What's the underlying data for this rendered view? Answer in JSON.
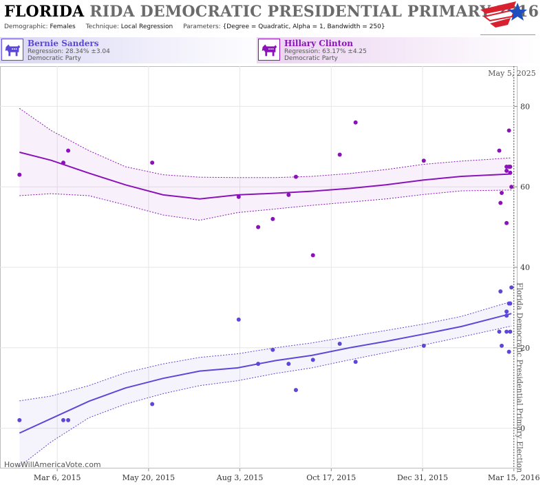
{
  "header": {
    "title_prefix": "FLORIDA",
    "title_rest": "RIDA DEMOCRATIC PRESIDENTIAL PRIMARY 2016",
    "params": [
      {
        "label": "Demographic:",
        "value": "Females"
      },
      {
        "label": "Technique:",
        "value": "Local Regression"
      },
      {
        "label": "Parameters:",
        "value": "{Degree = Quadratic, Alpha = 1, Bandwidth = 250}"
      }
    ]
  },
  "candidates": [
    {
      "name": "Bernie Sanders",
      "regression": "Regression: 28.34% ±3.04",
      "party": "Democratic Party",
      "color": "#5b48d6"
    },
    {
      "name": "Hillary Clinton",
      "regression": "Regression: 63.17% ±4.25",
      "party": "Democratic Party",
      "color": "#8a12b8"
    }
  ],
  "credit": "HowWillAmericaVote.com",
  "chart_data": {
    "type": "scatter",
    "x_type": "date",
    "xlim": [
      "2015-01-18",
      "2016-03-18"
    ],
    "ylim": [
      -10,
      90
    ],
    "x_ticks": [
      {
        "date": "2015-03-06",
        "label": "Mar 6, 2015"
      },
      {
        "date": "2015-05-20",
        "label": "May 20, 2015"
      },
      {
        "date": "2015-08-03",
        "label": "Aug 3, 2015"
      },
      {
        "date": "2015-10-17",
        "label": "Oct 17, 2015"
      },
      {
        "date": "2015-12-31",
        "label": "Dec 31, 2015"
      },
      {
        "date": "2016-03-15",
        "label": "Mar 15, 2016"
      }
    ],
    "y_ticks": [
      0,
      20,
      40,
      60,
      80
    ],
    "annotation": {
      "date": "2016-03-15",
      "text": "Florida Democratic Presidential Primary Election",
      "top_label": "May 5, 2025"
    },
    "series": [
      {
        "name": "Hillary Clinton",
        "color": "#8a12b8",
        "points": [
          [
            "2015-02-03",
            63
          ],
          [
            "2015-03-11",
            66
          ],
          [
            "2015-03-15",
            69
          ],
          [
            "2015-05-23",
            66
          ],
          [
            "2015-08-02",
            57.5
          ],
          [
            "2015-08-18",
            50
          ],
          [
            "2015-08-30",
            52
          ],
          [
            "2015-09-12",
            58
          ],
          [
            "2015-09-18",
            62.5
          ],
          [
            "2015-10-02",
            43
          ],
          [
            "2015-10-24",
            68
          ],
          [
            "2015-11-06",
            76
          ],
          [
            "2016-01-01",
            66.5
          ],
          [
            "2016-03-03",
            69
          ],
          [
            "2016-03-04",
            56
          ],
          [
            "2016-03-05",
            58.5
          ],
          [
            "2016-03-09",
            51
          ],
          [
            "2016-03-09",
            65
          ],
          [
            "2016-03-09",
            64
          ],
          [
            "2016-03-11",
            74
          ],
          [
            "2016-03-11",
            65
          ],
          [
            "2016-03-12",
            65
          ],
          [
            "2016-03-12",
            63.5
          ],
          [
            "2016-03-13",
            60
          ]
        ],
        "fit": [
          [
            "2015-02-03",
            68.6
          ],
          [
            "2015-03-01",
            66.6
          ],
          [
            "2015-04-01",
            63.4
          ],
          [
            "2015-05-01",
            60.5
          ],
          [
            "2015-06-01",
            58.0
          ],
          [
            "2015-07-01",
            57.0
          ],
          [
            "2015-08-01",
            58.0
          ],
          [
            "2015-09-01",
            58.4
          ],
          [
            "2015-10-01",
            58.9
          ],
          [
            "2015-11-01",
            59.6
          ],
          [
            "2015-12-01",
            60.5
          ],
          [
            "2016-01-01",
            61.7
          ],
          [
            "2016-02-01",
            62.6
          ],
          [
            "2016-03-13",
            63.2
          ]
        ],
        "upper": [
          [
            "2015-02-03",
            79.5
          ],
          [
            "2015-03-01",
            74.0
          ],
          [
            "2015-04-01",
            69.0
          ],
          [
            "2015-05-01",
            65.0
          ],
          [
            "2015-06-01",
            63.0
          ],
          [
            "2015-07-01",
            62.4
          ],
          [
            "2015-08-01",
            62.3
          ],
          [
            "2015-09-01",
            62.3
          ],
          [
            "2015-10-01",
            62.6
          ],
          [
            "2015-11-01",
            63.3
          ],
          [
            "2015-12-01",
            64.3
          ],
          [
            "2016-01-01",
            65.6
          ],
          [
            "2016-02-01",
            66.4
          ],
          [
            "2016-03-13",
            67.2
          ]
        ],
        "lower": [
          [
            "2015-02-03",
            57.8
          ],
          [
            "2015-03-01",
            58.3
          ],
          [
            "2015-04-01",
            57.8
          ],
          [
            "2015-05-01",
            55.5
          ],
          [
            "2015-06-01",
            53.0
          ],
          [
            "2015-07-01",
            51.7
          ],
          [
            "2015-08-01",
            53.6
          ],
          [
            "2015-09-01",
            54.5
          ],
          [
            "2015-10-01",
            55.4
          ],
          [
            "2015-11-01",
            56.2
          ],
          [
            "2015-12-01",
            57.0
          ],
          [
            "2016-01-01",
            58.1
          ],
          [
            "2016-02-01",
            59.0
          ],
          [
            "2016-03-13",
            59.2
          ]
        ]
      },
      {
        "name": "Bernie Sanders",
        "color": "#5b48d6",
        "points": [
          [
            "2015-02-03",
            2
          ],
          [
            "2015-03-11",
            2
          ],
          [
            "2015-03-15",
            2
          ],
          [
            "2015-05-23",
            6
          ],
          [
            "2015-08-02",
            27
          ],
          [
            "2015-08-18",
            16
          ],
          [
            "2015-08-30",
            19.5
          ],
          [
            "2015-09-12",
            16
          ],
          [
            "2015-09-18",
            9.5
          ],
          [
            "2015-10-02",
            17
          ],
          [
            "2015-10-24",
            21
          ],
          [
            "2015-11-06",
            16.5
          ],
          [
            "2016-01-01",
            20.5
          ],
          [
            "2016-03-03",
            24
          ],
          [
            "2016-03-04",
            34
          ],
          [
            "2016-03-05",
            20.5
          ],
          [
            "2016-03-09",
            29
          ],
          [
            "2016-03-09",
            28
          ],
          [
            "2016-03-09",
            24
          ],
          [
            "2016-03-11",
            19
          ],
          [
            "2016-03-11",
            31
          ],
          [
            "2016-03-12",
            24
          ],
          [
            "2016-03-12",
            31
          ],
          [
            "2016-03-13",
            35
          ]
        ],
        "fit": [
          [
            "2015-02-03",
            -1.2
          ],
          [
            "2015-03-01",
            2.4
          ],
          [
            "2015-04-01",
            6.7
          ],
          [
            "2015-05-01",
            10.0
          ],
          [
            "2015-06-01",
            12.4
          ],
          [
            "2015-07-01",
            14.2
          ],
          [
            "2015-08-01",
            15.0
          ],
          [
            "2015-09-01",
            16.8
          ],
          [
            "2015-10-01",
            18.1
          ],
          [
            "2015-11-01",
            20.0
          ],
          [
            "2015-12-01",
            21.6
          ],
          [
            "2016-01-01",
            23.4
          ],
          [
            "2016-02-01",
            25.3
          ],
          [
            "2016-03-13",
            28.5
          ]
        ],
        "upper": [
          [
            "2015-02-03",
            6.8
          ],
          [
            "2015-03-01",
            8.0
          ],
          [
            "2015-04-01",
            10.6
          ],
          [
            "2015-05-01",
            13.8
          ],
          [
            "2015-06-01",
            16.0
          ],
          [
            "2015-07-01",
            17.6
          ],
          [
            "2015-08-01",
            18.5
          ],
          [
            "2015-09-01",
            20.0
          ],
          [
            "2015-10-01",
            21.2
          ],
          [
            "2015-11-01",
            22.8
          ],
          [
            "2015-12-01",
            24.3
          ],
          [
            "2016-01-01",
            25.9
          ],
          [
            "2016-02-01",
            27.8
          ],
          [
            "2016-03-13",
            31.5
          ]
        ],
        "lower": [
          [
            "2015-02-03",
            -9.5
          ],
          [
            "2015-03-01",
            -3.4
          ],
          [
            "2015-04-01",
            2.6
          ],
          [
            "2015-05-01",
            6.0
          ],
          [
            "2015-06-01",
            8.6
          ],
          [
            "2015-07-01",
            10.6
          ],
          [
            "2015-08-01",
            11.8
          ],
          [
            "2015-09-01",
            13.6
          ],
          [
            "2015-10-01",
            15.0
          ],
          [
            "2015-11-01",
            17.0
          ],
          [
            "2015-12-01",
            18.8
          ],
          [
            "2016-01-01",
            20.7
          ],
          [
            "2016-02-01",
            22.7
          ],
          [
            "2016-03-13",
            25.4
          ]
        ]
      }
    ]
  }
}
